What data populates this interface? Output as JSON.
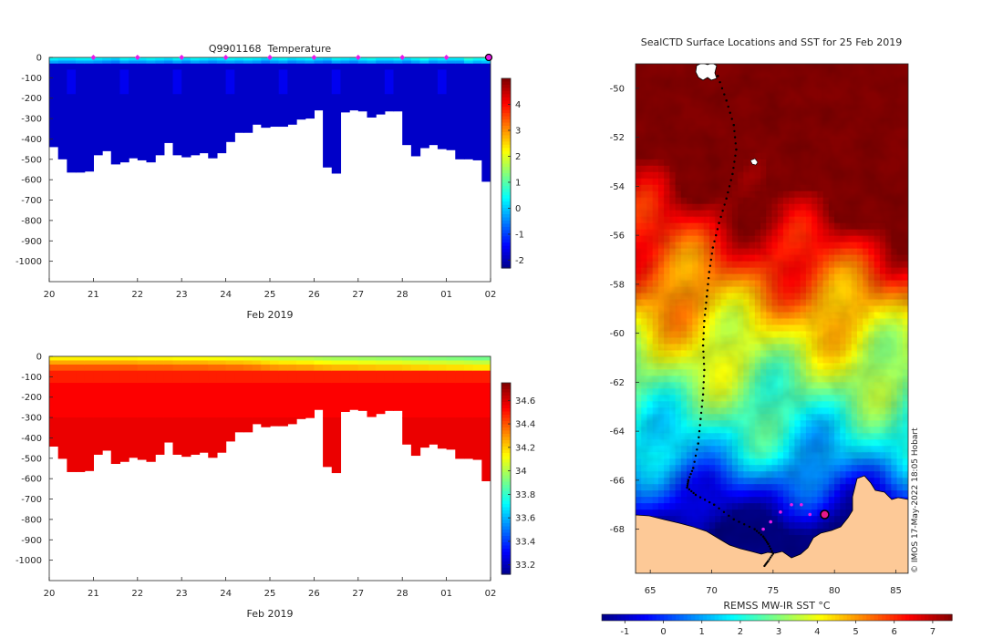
{
  "chart_data": [
    {
      "type": "heatmap",
      "title": "Q9901168  Temperature",
      "xlabel": "Feb 2019",
      "ylabel": "",
      "x_tick_labels": [
        "20",
        "21",
        "22",
        "23",
        "24",
        "25",
        "26",
        "27",
        "28",
        "01",
        "02"
      ],
      "y_tick_labels": [
        "0",
        "-100",
        "-200",
        "-300",
        "-400",
        "-500",
        "-600",
        "-700",
        "-800",
        "-900",
        "-1000"
      ],
      "ylim": [
        -1100,
        0
      ],
      "colorbar": {
        "min": -2.3,
        "max": 5.0,
        "ticks": [
          "4",
          "3",
          "2",
          "1",
          "0",
          "-1",
          "-2"
        ]
      },
      "profile_days": [
        0.1,
        0.3,
        0.5,
        0.7,
        0.9,
        1.1,
        1.3,
        1.5,
        1.7,
        1.9,
        2.1,
        2.3,
        2.5,
        2.7,
        2.9,
        3.1,
        3.3,
        3.5,
        3.7,
        3.9,
        4.1,
        4.3,
        4.5,
        4.7,
        4.9,
        5.1,
        5.3,
        5.5,
        5.7,
        5.9,
        6.1,
        6.3,
        6.5,
        6.7,
        6.9,
        7.1,
        7.3,
        7.5,
        7.7,
        7.9,
        8.1,
        8.3,
        8.5,
        8.7,
        8.9,
        9.1,
        9.3,
        9.5,
        9.7,
        9.9
      ],
      "profile_max_depth_m": [
        440,
        500,
        565,
        565,
        560,
        480,
        460,
        525,
        515,
        495,
        505,
        515,
        480,
        420,
        480,
        490,
        480,
        470,
        495,
        470,
        415,
        370,
        370,
        330,
        345,
        340,
        340,
        330,
        305,
        300,
        260,
        540,
        570,
        270,
        260,
        265,
        295,
        280,
        265,
        265,
        430,
        485,
        445,
        430,
        450,
        455,
        500,
        500,
        505,
        610
      ],
      "surface_temp_c": [
        0.5,
        0.4,
        0.4,
        0.5,
        0.5,
        0.4,
        0.3,
        0.2,
        0.5,
        0.4,
        0.4,
        0.5,
        0.4,
        0.3,
        0.5,
        0.3,
        0.5,
        0.4,
        0.3,
        0.4,
        0.5,
        0.4,
        0.5,
        0.4,
        0.2,
        0.4,
        0.5,
        0.3,
        0.4,
        0.5,
        0.3,
        0.2,
        0.5,
        0.4,
        0.3,
        0.5,
        0.6,
        0.4,
        0.4,
        0.5,
        0.3,
        0.5,
        0.7,
        0.4,
        0.5,
        0.4,
        0.4,
        0.8,
        0.6,
        0.7
      ],
      "deep_temp_c": -1.8,
      "profile_marker_days": [
        1,
        2,
        3,
        4,
        5,
        6,
        7,
        8,
        9
      ]
    },
    {
      "type": "heatmap",
      "title": "",
      "xlabel": "Feb 2019",
      "ylabel": "",
      "x_tick_labels": [
        "20",
        "21",
        "22",
        "23",
        "24",
        "25",
        "26",
        "27",
        "28",
        "01",
        "02"
      ],
      "y_tick_labels": [
        "0",
        "-100",
        "-200",
        "-300",
        "-400",
        "-500",
        "-600",
        "-700",
        "-800",
        "-900",
        "-1000"
      ],
      "ylim": [
        -1100,
        0
      ],
      "colorbar": {
        "min": 33.12,
        "max": 34.75,
        "ticks": [
          "34.6",
          "34.4",
          "34.2",
          "34",
          "33.8",
          "33.6",
          "33.4",
          "33.2"
        ]
      },
      "surface_salinity": [
        34.16,
        34.16,
        34.16,
        34.16,
        34.16,
        34.16,
        34.16,
        34.16,
        34.16,
        34.16,
        34.15,
        34.15,
        34.15,
        34.15,
        34.14,
        34.14,
        34.14,
        34.14,
        34.13,
        34.13,
        34.12,
        34.12,
        34.11,
        34.1,
        34.08,
        34.06,
        34.05,
        34.05,
        34.04,
        34.04,
        34.02,
        34.01,
        34.0,
        34.0,
        34.0,
        33.99,
        33.99,
        33.98,
        33.98,
        33.98,
        33.97,
        33.96,
        33.96,
        33.95,
        33.95,
        33.94,
        33.94,
        33.93,
        33.92,
        33.92
      ],
      "deep_salinity": 34.53
    },
    {
      "type": "heatmap",
      "title": "SealCTD Surface Locations and SST for 25 Feb 2019",
      "xlabel": "REMSS MW-IR SST °C",
      "ylabel": "",
      "x_tick_labels": [
        "65",
        "70",
        "75",
        "80",
        "85"
      ],
      "y_tick_labels": [
        "-50",
        "-52",
        "-54",
        "-56",
        "-58",
        "-60",
        "-62",
        "-64",
        "-66",
        "-68"
      ],
      "lon_range": [
        63.8,
        86.0
      ],
      "lat_range": [
        -69.8,
        -49.0
      ],
      "colorbar": {
        "min": -1.6,
        "max": 7.5,
        "ticks": [
          "-1",
          "0",
          "1",
          "2",
          "3",
          "4",
          "5",
          "6",
          "7"
        ]
      },
      "side_note": "© IMOS 17-May-2022 18:05 Hobart",
      "track_lon": [
        70.5,
        71.2,
        71.8,
        72.0,
        71.7,
        71.2,
        70.6,
        70.1,
        69.8,
        69.6,
        69.4,
        69.3,
        69.4,
        69.3,
        69.1,
        68.9,
        68.5,
        68.1,
        68.0,
        68.7,
        70.2,
        71.8,
        73.5,
        74.2,
        74.6,
        75.0,
        74.6,
        74.3
      ],
      "track_lat": [
        -49.5,
        -50.5,
        -51.5,
        -52.5,
        -53.5,
        -54.5,
        -55.5,
        -56.5,
        -57.5,
        -58.5,
        -59.5,
        -60.5,
        -61.5,
        -62.5,
        -63.5,
        -64.5,
        -65.5,
        -66.0,
        -66.3,
        -66.6,
        -67.0,
        -67.6,
        -68.0,
        -68.3,
        -68.6,
        -69.0,
        -69.3,
        -69.5
      ],
      "recent_lon": [
        74.2,
        74.8,
        75.6,
        76.5,
        77.3,
        78.0,
        79.2
      ],
      "recent_lat": [
        -68.0,
        -67.7,
        -67.3,
        -67.0,
        -67.0,
        -67.4,
        -67.4
      ],
      "latest_position": {
        "lon": 79.2,
        "lat": -67.4
      }
    }
  ]
}
